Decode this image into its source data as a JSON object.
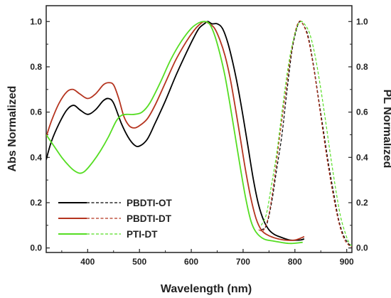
{
  "chart_data": {
    "type": "line",
    "xlabel": "Wavelength (nm)",
    "ylabel": "Abs Normalized",
    "y2label": "PL Normalized",
    "xlim": [
      320,
      910
    ],
    "ylim": [
      -0.02,
      1.07
    ],
    "xticks": [
      400,
      500,
      600,
      700,
      800,
      900
    ],
    "yticks": [
      0.0,
      0.2,
      0.4,
      0.6,
      0.8,
      1.0
    ],
    "y2ticks": [
      0.0,
      0.2,
      0.4,
      0.6,
      0.8,
      1.0
    ],
    "tick_labels_x": [
      "400",
      "500",
      "600",
      "700",
      "800",
      "900"
    ],
    "tick_labels_y": [
      "0.0",
      "0.2",
      "0.4",
      "0.6",
      "0.8",
      "1.0"
    ],
    "tick_labels_y2": [
      "0.0",
      "0.2",
      "0.4",
      "0.6",
      "0.8",
      "1.0"
    ],
    "grid": false,
    "legend_position": "bottom-left",
    "series": [
      {
        "name": "PBDTI-OT",
        "color": "#000000",
        "abs": [
          [
            320,
            0.39
          ],
          [
            330,
            0.47
          ],
          [
            345,
            0.55
          ],
          [
            360,
            0.61
          ],
          [
            373,
            0.63
          ],
          [
            385,
            0.61
          ],
          [
            400,
            0.59
          ],
          [
            415,
            0.61
          ],
          [
            430,
            0.65
          ],
          [
            440,
            0.66
          ],
          [
            450,
            0.64
          ],
          [
            465,
            0.55
          ],
          [
            478,
            0.49
          ],
          [
            490,
            0.455
          ],
          [
            500,
            0.45
          ],
          [
            515,
            0.48
          ],
          [
            530,
            0.55
          ],
          [
            550,
            0.65
          ],
          [
            570,
            0.76
          ],
          [
            590,
            0.86
          ],
          [
            605,
            0.93
          ],
          [
            615,
            0.97
          ],
          [
            625,
            0.99
          ],
          [
            632,
            1.0
          ],
          [
            640,
            0.99
          ],
          [
            650,
            0.99
          ],
          [
            660,
            0.97
          ],
          [
            670,
            0.91
          ],
          [
            680,
            0.82
          ],
          [
            690,
            0.71
          ],
          [
            700,
            0.58
          ],
          [
            710,
            0.44
          ],
          [
            720,
            0.3
          ],
          [
            730,
            0.19
          ],
          [
            740,
            0.12
          ],
          [
            750,
            0.08
          ],
          [
            760,
            0.06
          ],
          [
            770,
            0.05
          ],
          [
            790,
            0.035
          ],
          [
            810,
            0.035
          ],
          [
            818,
            0.04
          ]
        ],
        "pl": [
          [
            735,
            0.08
          ],
          [
            745,
            0.1
          ],
          [
            755,
            0.2
          ],
          [
            765,
            0.35
          ],
          [
            775,
            0.5
          ],
          [
            785,
            0.7
          ],
          [
            795,
            0.88
          ],
          [
            805,
            0.98
          ],
          [
            810,
            1.0
          ],
          [
            815,
            0.99
          ],
          [
            825,
            0.94
          ],
          [
            835,
            0.82
          ],
          [
            845,
            0.67
          ],
          [
            855,
            0.52
          ],
          [
            865,
            0.37
          ],
          [
            875,
            0.24
          ],
          [
            885,
            0.12
          ],
          [
            895,
            0.05
          ],
          [
            905,
            0.015
          ],
          [
            910,
            0.005
          ]
        ]
      },
      {
        "name": "PBDTI-DT",
        "color": "#b5341f",
        "abs": [
          [
            320,
            0.49
          ],
          [
            330,
            0.56
          ],
          [
            345,
            0.64
          ],
          [
            360,
            0.69
          ],
          [
            372,
            0.7
          ],
          [
            385,
            0.68
          ],
          [
            400,
            0.66
          ],
          [
            415,
            0.68
          ],
          [
            430,
            0.72
          ],
          [
            440,
            0.73
          ],
          [
            450,
            0.72
          ],
          [
            460,
            0.66
          ],
          [
            470,
            0.58
          ],
          [
            480,
            0.54
          ],
          [
            490,
            0.53
          ],
          [
            500,
            0.54
          ],
          [
            515,
            0.57
          ],
          [
            530,
            0.63
          ],
          [
            550,
            0.73
          ],
          [
            570,
            0.83
          ],
          [
            590,
            0.91
          ],
          [
            605,
            0.96
          ],
          [
            615,
            0.985
          ],
          [
            625,
            1.0
          ],
          [
            635,
            0.99
          ],
          [
            645,
            0.97
          ],
          [
            655,
            0.92
          ],
          [
            665,
            0.85
          ],
          [
            675,
            0.75
          ],
          [
            685,
            0.62
          ],
          [
            695,
            0.48
          ],
          [
            705,
            0.34
          ],
          [
            715,
            0.22
          ],
          [
            725,
            0.13
          ],
          [
            735,
            0.08
          ],
          [
            745,
            0.06
          ],
          [
            760,
            0.045
          ],
          [
            780,
            0.035
          ],
          [
            800,
            0.035
          ],
          [
            818,
            0.05
          ]
        ],
        "pl": [
          [
            730,
            0.08
          ],
          [
            740,
            0.08
          ],
          [
            750,
            0.15
          ],
          [
            760,
            0.3
          ],
          [
            770,
            0.48
          ],
          [
            780,
            0.65
          ],
          [
            790,
            0.82
          ],
          [
            800,
            0.95
          ],
          [
            808,
            1.0
          ],
          [
            815,
            0.99
          ],
          [
            825,
            0.93
          ],
          [
            835,
            0.81
          ],
          [
            845,
            0.66
          ],
          [
            855,
            0.5
          ],
          [
            865,
            0.35
          ],
          [
            875,
            0.22
          ],
          [
            885,
            0.11
          ],
          [
            895,
            0.04
          ],
          [
            905,
            0.01
          ],
          [
            910,
            0.005
          ]
        ]
      },
      {
        "name": "PTI-DT",
        "color": "#55dd22",
        "abs": [
          [
            320,
            0.5
          ],
          [
            335,
            0.45
          ],
          [
            350,
            0.4
          ],
          [
            365,
            0.36
          ],
          [
            375,
            0.34
          ],
          [
            385,
            0.33
          ],
          [
            395,
            0.34
          ],
          [
            410,
            0.38
          ],
          [
            425,
            0.43
          ],
          [
            440,
            0.49
          ],
          [
            455,
            0.56
          ],
          [
            465,
            0.585
          ],
          [
            475,
            0.59
          ],
          [
            490,
            0.59
          ],
          [
            505,
            0.6
          ],
          [
            520,
            0.64
          ],
          [
            540,
            0.73
          ],
          [
            560,
            0.83
          ],
          [
            580,
            0.91
          ],
          [
            600,
            0.97
          ],
          [
            615,
            0.995
          ],
          [
            625,
            1.0
          ],
          [
            635,
            0.99
          ],
          [
            645,
            0.94
          ],
          [
            655,
            0.86
          ],
          [
            665,
            0.76
          ],
          [
            675,
            0.63
          ],
          [
            685,
            0.49
          ],
          [
            695,
            0.35
          ],
          [
            705,
            0.22
          ],
          [
            715,
            0.12
          ],
          [
            725,
            0.07
          ],
          [
            740,
            0.04
          ],
          [
            760,
            0.03
          ],
          [
            790,
            0.02
          ],
          [
            815,
            0.025
          ]
        ],
        "pl": [
          [
            735,
            0.1
          ],
          [
            745,
            0.15
          ],
          [
            755,
            0.28
          ],
          [
            765,
            0.42
          ],
          [
            775,
            0.6
          ],
          [
            785,
            0.77
          ],
          [
            795,
            0.9
          ],
          [
            805,
            0.98
          ],
          [
            812,
            1.0
          ],
          [
            818,
            0.99
          ],
          [
            828,
            0.95
          ],
          [
            838,
            0.86
          ],
          [
            848,
            0.73
          ],
          [
            858,
            0.58
          ],
          [
            868,
            0.42
          ],
          [
            878,
            0.27
          ],
          [
            888,
            0.14
          ],
          [
            898,
            0.06
          ],
          [
            905,
            0.02
          ],
          [
            910,
            0.01
          ]
        ]
      }
    ]
  }
}
